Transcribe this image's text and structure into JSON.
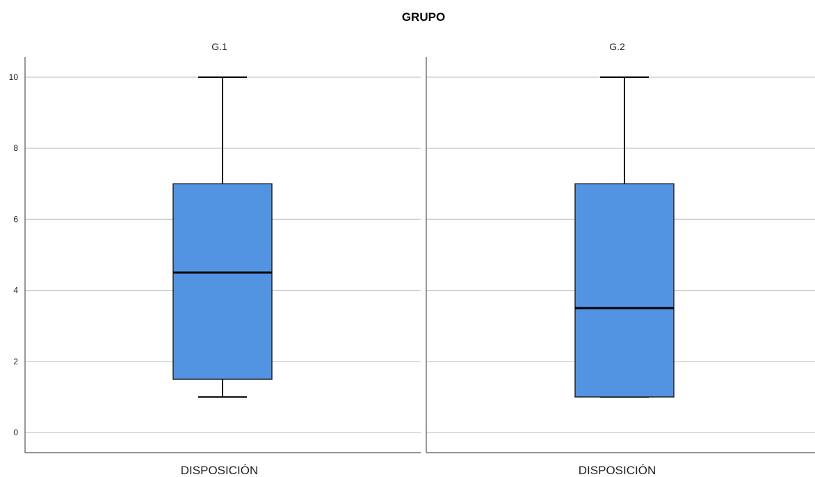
{
  "chart_data": {
    "type": "boxplot",
    "title": "GRUPO",
    "ylim": [
      0,
      10
    ],
    "yticks": [
      0,
      2,
      4,
      6,
      8,
      10
    ],
    "grid": true,
    "box_color": "#5294e2",
    "panels": [
      {
        "name": "G.1",
        "category": "DISPOSICIÓN",
        "min": 1,
        "q1": 1.5,
        "median": 4.5,
        "q3": 7,
        "max": 10
      },
      {
        "name": "G.2",
        "category": "DISPOSICIÓN",
        "min": 1,
        "q1": 1,
        "median": 3.5,
        "q3": 7,
        "max": 10
      }
    ]
  }
}
